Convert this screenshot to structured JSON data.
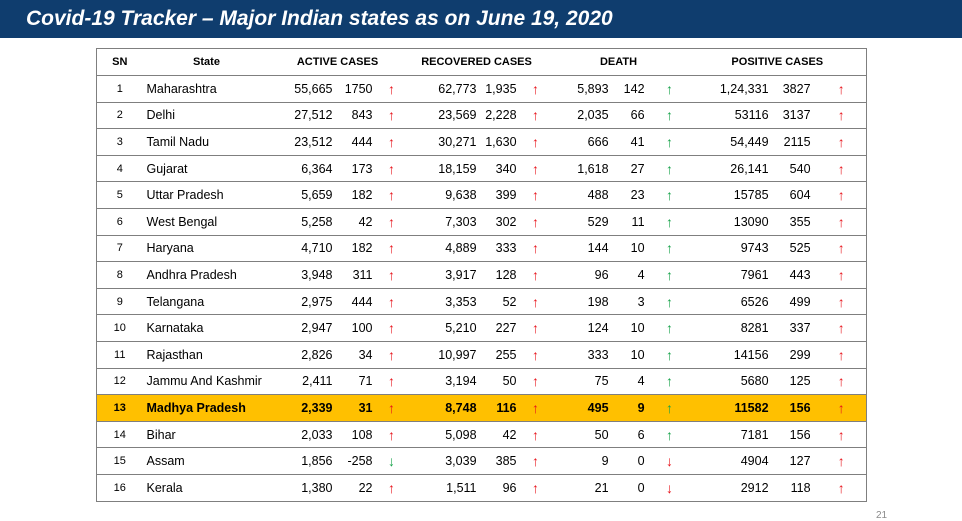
{
  "title": "Covid-19 Tracker – Major Indian states as on June 19, 2020",
  "page_number": "21",
  "headers": {
    "sn": "SN",
    "state": "State",
    "active": "ACTIVE CASES",
    "recovered": "RECOVERED CASES",
    "death": "DEATH",
    "positive": "POSITIVE CASES"
  },
  "colors": {
    "title_bg": "#0f3d6e",
    "highlight": "#ffc000",
    "arrow_red": "#e8141c",
    "arrow_green": "#17a34a"
  },
  "rows": [
    {
      "sn": "1",
      "state": "Maharashtra",
      "active": "55,665",
      "active_delta": "1750",
      "active_trend": "up",
      "recovered": "62,773",
      "recovered_delta": "1,935",
      "recovered_trend": "up",
      "death": "5,893",
      "death_delta": "142",
      "death_trend": "up-green",
      "positive": "1,24,331",
      "positive_delta": "3827",
      "positive_trend": "up"
    },
    {
      "sn": "2",
      "state": "Delhi",
      "active": "27,512",
      "active_delta": "843",
      "active_trend": "up",
      "recovered": "23,569",
      "recovered_delta": "2,228",
      "recovered_trend": "up",
      "death": "2,035",
      "death_delta": "66",
      "death_trend": "up-green",
      "positive": "53116",
      "positive_delta": "3137",
      "positive_trend": "up"
    },
    {
      "sn": "3",
      "state": "Tamil Nadu",
      "active": "23,512",
      "active_delta": "444",
      "active_trend": "up",
      "recovered": "30,271",
      "recovered_delta": "1,630",
      "recovered_trend": "up",
      "death": "666",
      "death_delta": "41",
      "death_trend": "up-green",
      "positive": "54,449",
      "positive_delta": "2115",
      "positive_trend": "up"
    },
    {
      "sn": "4",
      "state": "Gujarat",
      "active": "6,364",
      "active_delta": "173",
      "active_trend": "up",
      "recovered": "18,159",
      "recovered_delta": "340",
      "recovered_trend": "up",
      "death": "1,618",
      "death_delta": "27",
      "death_trend": "up-green",
      "positive": "26,141",
      "positive_delta": "540",
      "positive_trend": "up"
    },
    {
      "sn": "5",
      "state": "Uttar Pradesh",
      "active": "5,659",
      "active_delta": "182",
      "active_trend": "up",
      "recovered": "9,638",
      "recovered_delta": "399",
      "recovered_trend": "up",
      "death": "488",
      "death_delta": "23",
      "death_trend": "up-green",
      "positive": "15785",
      "positive_delta": "604",
      "positive_trend": "up"
    },
    {
      "sn": "6",
      "state": "West Bengal",
      "active": "5,258",
      "active_delta": "42",
      "active_trend": "up",
      "recovered": "7,303",
      "recovered_delta": "302",
      "recovered_trend": "up",
      "death": "529",
      "death_delta": "11",
      "death_trend": "up-green",
      "positive": "13090",
      "positive_delta": "355",
      "positive_trend": "up"
    },
    {
      "sn": "7",
      "state": "Haryana",
      "active": "4,710",
      "active_delta": "182",
      "active_trend": "up",
      "recovered": "4,889",
      "recovered_delta": "333",
      "recovered_trend": "up",
      "death": "144",
      "death_delta": "10",
      "death_trend": "up-green",
      "positive": "9743",
      "positive_delta": "525",
      "positive_trend": "up"
    },
    {
      "sn": "8",
      "state": "Andhra Pradesh",
      "active": "3,948",
      "active_delta": "311",
      "active_trend": "up",
      "recovered": "3,917",
      "recovered_delta": "128",
      "recovered_trend": "up",
      "death": "96",
      "death_delta": "4",
      "death_trend": "up-green",
      "positive": "7961",
      "positive_delta": "443",
      "positive_trend": "up"
    },
    {
      "sn": "9",
      "state": "Telangana",
      "active": "2,975",
      "active_delta": "444",
      "active_trend": "up",
      "recovered": "3,353",
      "recovered_delta": "52",
      "recovered_trend": "up",
      "death": "198",
      "death_delta": "3",
      "death_trend": "up-green",
      "positive": "6526",
      "positive_delta": "499",
      "positive_trend": "up"
    },
    {
      "sn": "10",
      "state": "Karnataka",
      "active": "2,947",
      "active_delta": "100",
      "active_trend": "up",
      "recovered": "5,210",
      "recovered_delta": "227",
      "recovered_trend": "up",
      "death": "124",
      "death_delta": "10",
      "death_trend": "up-green",
      "positive": "8281",
      "positive_delta": "337",
      "positive_trend": "up"
    },
    {
      "sn": "11",
      "state": "Rajasthan",
      "active": "2,826",
      "active_delta": "34",
      "active_trend": "up",
      "recovered": "10,997",
      "recovered_delta": "255",
      "recovered_trend": "up",
      "death": "333",
      "death_delta": "10",
      "death_trend": "up-green",
      "positive": "14156",
      "positive_delta": "299",
      "positive_trend": "up"
    },
    {
      "sn": "12",
      "state": "Jammu And Kashmir",
      "active": "2,411",
      "active_delta": "71",
      "active_trend": "up",
      "recovered": "3,194",
      "recovered_delta": "50",
      "recovered_trend": "up",
      "death": "75",
      "death_delta": "4",
      "death_trend": "up-green",
      "positive": "5680",
      "positive_delta": "125",
      "positive_trend": "up"
    },
    {
      "sn": "13",
      "state": "Madhya Pradesh",
      "active": "2,339",
      "active_delta": "31",
      "active_trend": "up",
      "recovered": "8,748",
      "recovered_delta": "116",
      "recovered_trend": "up",
      "death": "495",
      "death_delta": "9",
      "death_trend": "up-green",
      "positive": "11582",
      "positive_delta": "156",
      "positive_trend": "up",
      "highlight": true
    },
    {
      "sn": "14",
      "state": "Bihar",
      "active": "2,033",
      "active_delta": "108",
      "active_trend": "up",
      "recovered": "5,098",
      "recovered_delta": "42",
      "recovered_trend": "up",
      "death": "50",
      "death_delta": "6",
      "death_trend": "up-green",
      "positive": "7181",
      "positive_delta": "156",
      "positive_trend": "up"
    },
    {
      "sn": "15",
      "state": "Assam",
      "active": "1,856",
      "active_delta": "-258",
      "active_trend": "down-green",
      "recovered": "3,039",
      "recovered_delta": "385",
      "recovered_trend": "up",
      "death": "9",
      "death_delta": "0",
      "death_trend": "down-red",
      "positive": "4904",
      "positive_delta": "127",
      "positive_trend": "up"
    },
    {
      "sn": "16",
      "state": "Kerala",
      "active": "1,380",
      "active_delta": "22",
      "active_trend": "up",
      "recovered": "1,511",
      "recovered_delta": "96",
      "recovered_trend": "up",
      "death": "21",
      "death_delta": "0",
      "death_trend": "down-red",
      "positive": "2912",
      "positive_delta": "118",
      "positive_trend": "up"
    }
  ]
}
